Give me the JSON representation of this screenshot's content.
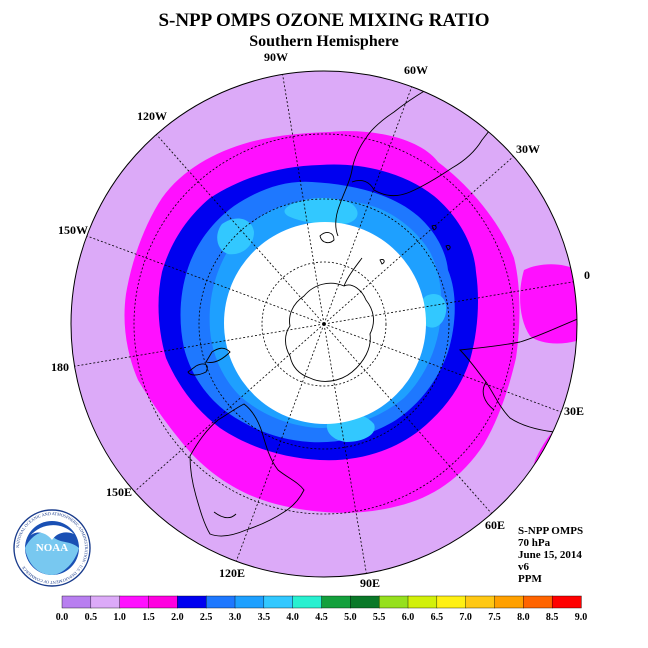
{
  "title": "S-NPP OMPS OZONE MIXING RATIO",
  "subtitle": "Southern Hemisphere",
  "longitude_labels": {
    "lon_90w": "90W",
    "lon_60w": "60W",
    "lon_30w": "30W",
    "lon_0": "0",
    "lon_30e": "30E",
    "lon_60e": "60E",
    "lon_90e": "90E",
    "lon_120e": "120E",
    "lon_150e": "150E",
    "lon_180": "180",
    "lon_150w": "150W",
    "lon_120w": "120W"
  },
  "info": {
    "instrument": "S-NPP OMPS",
    "level": "70 hPa",
    "date": "June 15, 2014",
    "version": "v6",
    "units": "PPM"
  },
  "logo": {
    "text": "NOAA",
    "ring_text": "NATIONAL OCEANIC AND ATMOSPHERIC ADMINISTRATION · U.S. DEPARTMENT OF COMMERCE"
  },
  "colorbar": {
    "labels": [
      "0.0",
      "0.5",
      "1.0",
      "1.5",
      "2.0",
      "2.5",
      "3.0",
      "3.5",
      "4.0",
      "4.5",
      "5.0",
      "5.5",
      "6.0",
      "6.5",
      "7.0",
      "7.5",
      "8.0",
      "8.5",
      "9.0"
    ],
    "colors": [
      "#b87ff0",
      "#dcaaf8",
      "#ff10ff",
      "#ff00e0",
      "#0000f0",
      "#1e78ff",
      "#1ea0ff",
      "#32c8ff",
      "#28f0d0",
      "#14a03c",
      "#0a7828",
      "#96e01e",
      "#d2f00a",
      "#fff014",
      "#ffc814",
      "#ffa000",
      "#ff6400",
      "#ff0000",
      "#8c4628"
    ]
  },
  "chart_data": {
    "type": "heatmap",
    "projection": "south-polar-stereographic",
    "quantity": "ozone mixing ratio",
    "units": "PPM",
    "pressure_level_hpa": 70,
    "date": "June 15, 2014",
    "scale_min": 0.0,
    "scale_max": 9.0,
    "scale_step": 0.5,
    "observed_range": [
      0.5,
      3.5
    ],
    "regions": [
      {
        "zone": "outer ring",
        "range": [
          0.5,
          1.0
        ]
      },
      {
        "zone": "mid-latitude band",
        "range": [
          1.0,
          1.5
        ]
      },
      {
        "zone": "inner band",
        "range": [
          1.5,
          2.0
        ]
      },
      {
        "zone": "polar edge",
        "range": [
          2.0,
          3.5
        ]
      },
      {
        "zone": "polar night",
        "range": null
      }
    ]
  }
}
